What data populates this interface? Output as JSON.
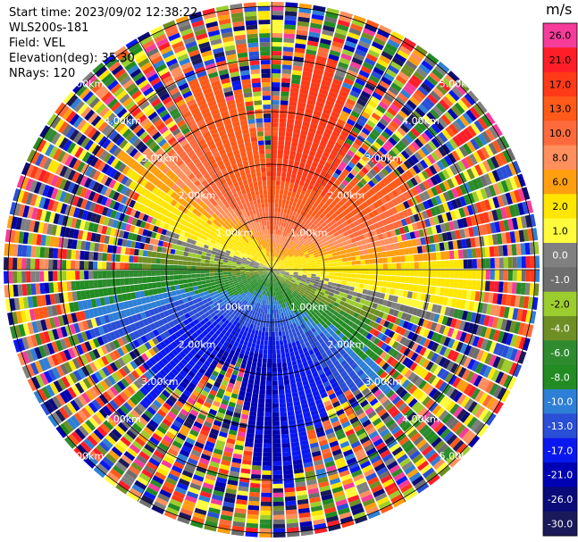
{
  "info": {
    "start_time": "Start time: 2023/09/02 12:38:22",
    "instrument": "WLS200s-181",
    "field": "Field: VEL",
    "elevation": "Elevation(deg): 35.30",
    "nrays": "NRays: 120"
  },
  "colorbar": {
    "unit": "m/s",
    "ticks": [
      "26.0",
      "21.0",
      "17.0",
      "13.0",
      "10.0",
      "8.0",
      "6.0",
      "2.0",
      "1.0",
      "0.0",
      "-1.0",
      "-2.0",
      "-4.0",
      "-6.0",
      "-8.0",
      "-10.0",
      "-13.0",
      "-17.0",
      "-21.0",
      "-26.0",
      "-30.0"
    ],
    "colors": [
      "#f53c9a",
      "#ff1e28",
      "#ff3a18",
      "#ff5a1a",
      "#ff6a3c",
      "#ff8f5c",
      "#ff9f10",
      "#ffe600",
      "#fffb3c",
      "#808080",
      "#6e6e6e",
      "#9ccd2e",
      "#6f8f24",
      "#2e8b2e",
      "#228b22",
      "#2e7fd6",
      "#2a4ed6",
      "#0a18f0",
      "#0000b4",
      "#0a0a78",
      "#1a1a5a"
    ]
  },
  "ring_labels": [
    "1.00km",
    "2.00km",
    "3.00km",
    "4.00km",
    "5.00km"
  ],
  "rays": 120
}
